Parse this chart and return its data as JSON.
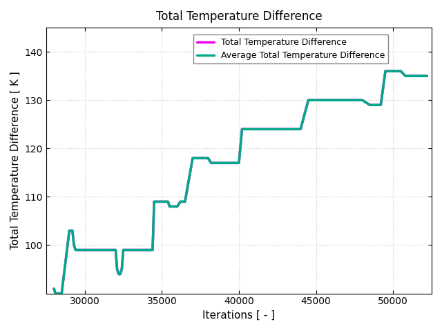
{
  "title": "Total Temperature Difference",
  "xlabel": "Iterations [ - ]",
  "ylabel": "Total Temperature Difference [ K ]",
  "legend": [
    "Total Temperature Difference",
    "Average Total Temperature Difference"
  ],
  "line1_color": "#ee00ee",
  "line2_color": "#00aa88",
  "line_width": 2.5,
  "xlim": [
    27500,
    52500
  ],
  "ylim": [
    90,
    145
  ],
  "xticks": [
    30000,
    35000,
    40000,
    45000,
    50000
  ],
  "yticks": [
    100,
    110,
    120,
    130,
    140
  ],
  "grid_color": "#c8c8c8",
  "background_color": "#ffffff",
  "x_data": [
    28000,
    28100,
    28500,
    29000,
    29200,
    29300,
    29400,
    29600,
    29700,
    30000,
    30200,
    30500,
    31000,
    31500,
    32000,
    32100,
    32200,
    32300,
    32400,
    32500,
    33000,
    33200,
    33500,
    34000,
    34200,
    34400,
    34500,
    34800,
    35000,
    35200,
    35400,
    35500,
    35600,
    36000,
    36200,
    36500,
    37000,
    37500,
    38000,
    38200,
    38500,
    38700,
    39000,
    39200,
    39500,
    39800,
    40000,
    40200,
    40500,
    41000,
    41200,
    41500,
    42000,
    42300,
    42500,
    43000,
    43200,
    43500,
    44000,
    44500,
    44800,
    45000,
    45200,
    45500,
    46000,
    46500,
    47000,
    47500,
    48000,
    48500,
    49000,
    49200,
    49500,
    50000,
    50200,
    50300,
    50400,
    50500,
    50800,
    51000,
    51200,
    51500,
    52000,
    52200
  ],
  "y_data": [
    91,
    90,
    90,
    103,
    103,
    100,
    99,
    99,
    99,
    99,
    99,
    99,
    99,
    99,
    99,
    95,
    94,
    94,
    95,
    99,
    99,
    99,
    99,
    99,
    99,
    99,
    109,
    109,
    109,
    109,
    109,
    108,
    108,
    108,
    109,
    109,
    118,
    118,
    118,
    117,
    117,
    117,
    117,
    117,
    117,
    117,
    117,
    124,
    124,
    124,
    124,
    124,
    124,
    124,
    124,
    124,
    124,
    124,
    124,
    130,
    130,
    130,
    130,
    130,
    130,
    130,
    130,
    130,
    130,
    129,
    129,
    129,
    136,
    136,
    136,
    136,
    136,
    136,
    135,
    135,
    135,
    135,
    135,
    135
  ]
}
